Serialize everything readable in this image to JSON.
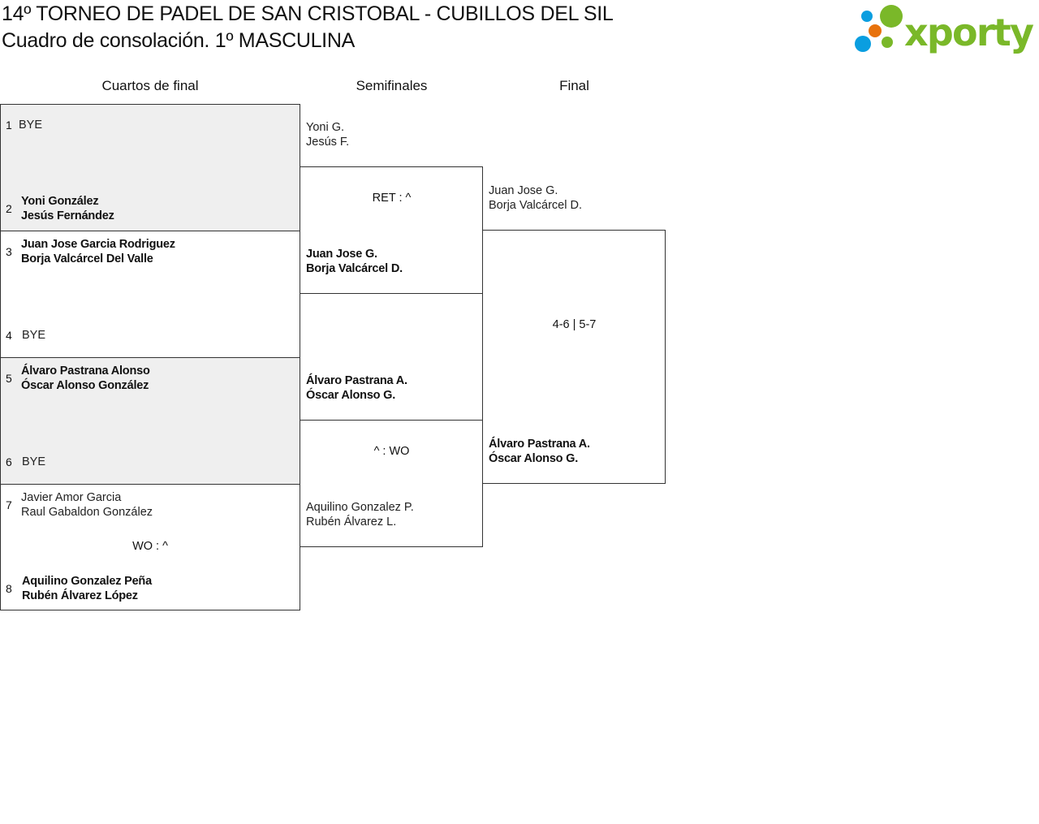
{
  "header": {
    "title": "14º TORNEO DE PADEL DE SAN CRISTOBAL - CUBILLOS DEL SIL",
    "subtitle": "Cuadro de consolación. 1º MASCULINA",
    "logo_text": "xporty"
  },
  "colors": {
    "logo_green": "#7ab829",
    "logo_blue": "#0a9ee0",
    "logo_orange": "#e8720c",
    "shade": "#efefef"
  },
  "rounds": [
    "Cuartos de final",
    "Semifinales",
    "Final"
  ],
  "quarterfinals": [
    {
      "seed": "1",
      "team": [
        "BYE"
      ]
    },
    {
      "seed": "2",
      "team": [
        "Yoni González",
        "Jesús Fernández"
      ]
    },
    {
      "seed": "3",
      "team": [
        "Juan Jose Garcia Rodriguez",
        "Borja Valcárcel Del Valle"
      ]
    },
    {
      "seed": "4",
      "team": [
        "BYE"
      ]
    },
    {
      "seed": "5",
      "team": [
        "Álvaro Pastrana Alonso",
        "Óscar Alonso González"
      ]
    },
    {
      "seed": "6",
      "team": [
        "BYE"
      ]
    },
    {
      "seed": "7",
      "team": [
        "Javier Amor Garcia",
        "Raul Gabaldon González"
      ]
    },
    {
      "seed": "8",
      "team": [
        "Aquilino Gonzalez Peña",
        "Rubén Álvarez López"
      ]
    }
  ],
  "qf_score_4": "WO : ^",
  "semifinals": [
    {
      "team": [
        "Yoni G.",
        "Jesús F."
      ]
    },
    {
      "team": [
        "Juan Jose G.",
        "Borja Valcárcel D."
      ]
    },
    {
      "team": [
        "Álvaro Pastrana A.",
        "Óscar Alonso G."
      ]
    },
    {
      "team": [
        "Aquilino Gonzalez P.",
        "Rubén Álvarez L."
      ]
    }
  ],
  "semi_scores": [
    "RET : ^",
    "^ : WO"
  ],
  "final": {
    "teams": [
      [
        "Juan Jose G.",
        "Borja Valcárcel D."
      ],
      [
        "Álvaro Pastrana A.",
        "Óscar Alonso G."
      ]
    ],
    "score": "4-6 | 5-7"
  }
}
